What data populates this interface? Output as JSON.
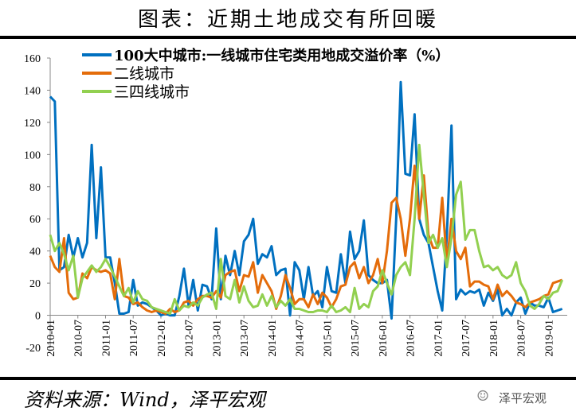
{
  "title": "图表：近期土地成交有所回暖",
  "source": "资料来源：Wind，泽平宏观",
  "brand": "泽平宏观",
  "brand_icon": "wechat-icon",
  "chart_data": {
    "type": "line",
    "title": "",
    "xlabel": "",
    "ylabel": "",
    "ylim": [
      -20,
      160
    ],
    "yticks": [
      "-20",
      "0",
      "20",
      "40",
      "60",
      "80",
      "100",
      "120",
      "140",
      "160"
    ],
    "x_start": "2010-01",
    "x_tick_labels": [
      "2010-01",
      "2010-07",
      "2011-01",
      "2011-07",
      "2012-01",
      "2012-07",
      "2013-01",
      "2013-07",
      "2014-01",
      "2014-07",
      "2015-01",
      "2015-07",
      "2016-01",
      "2016-07",
      "2017-01",
      "2017-07",
      "2018-01",
      "2018-07",
      "2019-01"
    ],
    "legend_position": "top-left",
    "grid": false,
    "series": [
      {
        "name": "100大中城市:一线城市住宅类用地成交溢价率（%）",
        "color": "#0070C0",
        "values": [
          136,
          133,
          28,
          30,
          50,
          36,
          48,
          36,
          45,
          106,
          48,
          92,
          36,
          36,
          20,
          1,
          1,
          2,
          22,
          6,
          8,
          7,
          5,
          3,
          0,
          1,
          0,
          0,
          12,
          29,
          6,
          22,
          3,
          19,
          18,
          10,
          54,
          10,
          37,
          25,
          40,
          25,
          46,
          50,
          60,
          32,
          38,
          36,
          43,
          25,
          28,
          29,
          0,
          33,
          28,
          10,
          30,
          12,
          15,
          5,
          30,
          15,
          14,
          38,
          20,
          52,
          35,
          40,
          59,
          25,
          22,
          20,
          20,
          22,
          -2,
          60,
          145,
          88,
          87,
          125,
          60,
          50,
          45,
          30,
          15,
          3,
          50,
          118,
          10,
          16,
          13,
          15,
          14,
          16,
          6,
          14,
          9,
          16,
          0,
          4,
          0,
          8,
          11,
          1,
          8,
          6,
          6,
          5,
          11,
          2,
          3,
          4
        ]
      },
      {
        "name": "二线城市",
        "color": "#E46C0A",
        "values": [
          37,
          30,
          27,
          48,
          14,
          10,
          11,
          26,
          23,
          30,
          28,
          27,
          28,
          26,
          10,
          35,
          12,
          11,
          7,
          8,
          5,
          3,
          2,
          3,
          2,
          1,
          4,
          2,
          3,
          8,
          9,
          6,
          10,
          12,
          12,
          11,
          15,
          11,
          25,
          27,
          28,
          15,
          25,
          24,
          33,
          14,
          25,
          20,
          15,
          4,
          12,
          25,
          17,
          7,
          10,
          10,
          5,
          13,
          7,
          14,
          11,
          5,
          10,
          18,
          19,
          30,
          33,
          23,
          30,
          20,
          25,
          35,
          20,
          40,
          70,
          73,
          60,
          37,
          60,
          93,
          60,
          87,
          50,
          42,
          42,
          73,
          32,
          60,
          40,
          35,
          42,
          18,
          21,
          21,
          19,
          18,
          10,
          19,
          12,
          15,
          12,
          8,
          7,
          5,
          8,
          9,
          10,
          12,
          13,
          20,
          21,
          22
        ]
      },
      {
        "name": "三四线城市",
        "color": "#92D050",
        "values": [
          50,
          40,
          45,
          38,
          28,
          37,
          11,
          23,
          27,
          31,
          27,
          30,
          35,
          30,
          24,
          18,
          12,
          17,
          8,
          15,
          10,
          9,
          5,
          4,
          3,
          2,
          1,
          10,
          3,
          6,
          5,
          8,
          6,
          11,
          13,
          14,
          4,
          35,
          12,
          10,
          22,
          8,
          18,
          9,
          5,
          6,
          13,
          6,
          12,
          5,
          9,
          6,
          10,
          4,
          4,
          3,
          2,
          2,
          3,
          3,
          2,
          6,
          2,
          3,
          5,
          2,
          17,
          4,
          7,
          5,
          15,
          18,
          28,
          20,
          13,
          25,
          30,
          33,
          25,
          60,
          106,
          75,
          45,
          50,
          42,
          48,
          30,
          48,
          75,
          83,
          47,
          53,
          53,
          40,
          30,
          31,
          28,
          30,
          25,
          23,
          25,
          33,
          20,
          15,
          6,
          4,
          7,
          12,
          10,
          14,
          15,
          22
        ]
      }
    ]
  }
}
